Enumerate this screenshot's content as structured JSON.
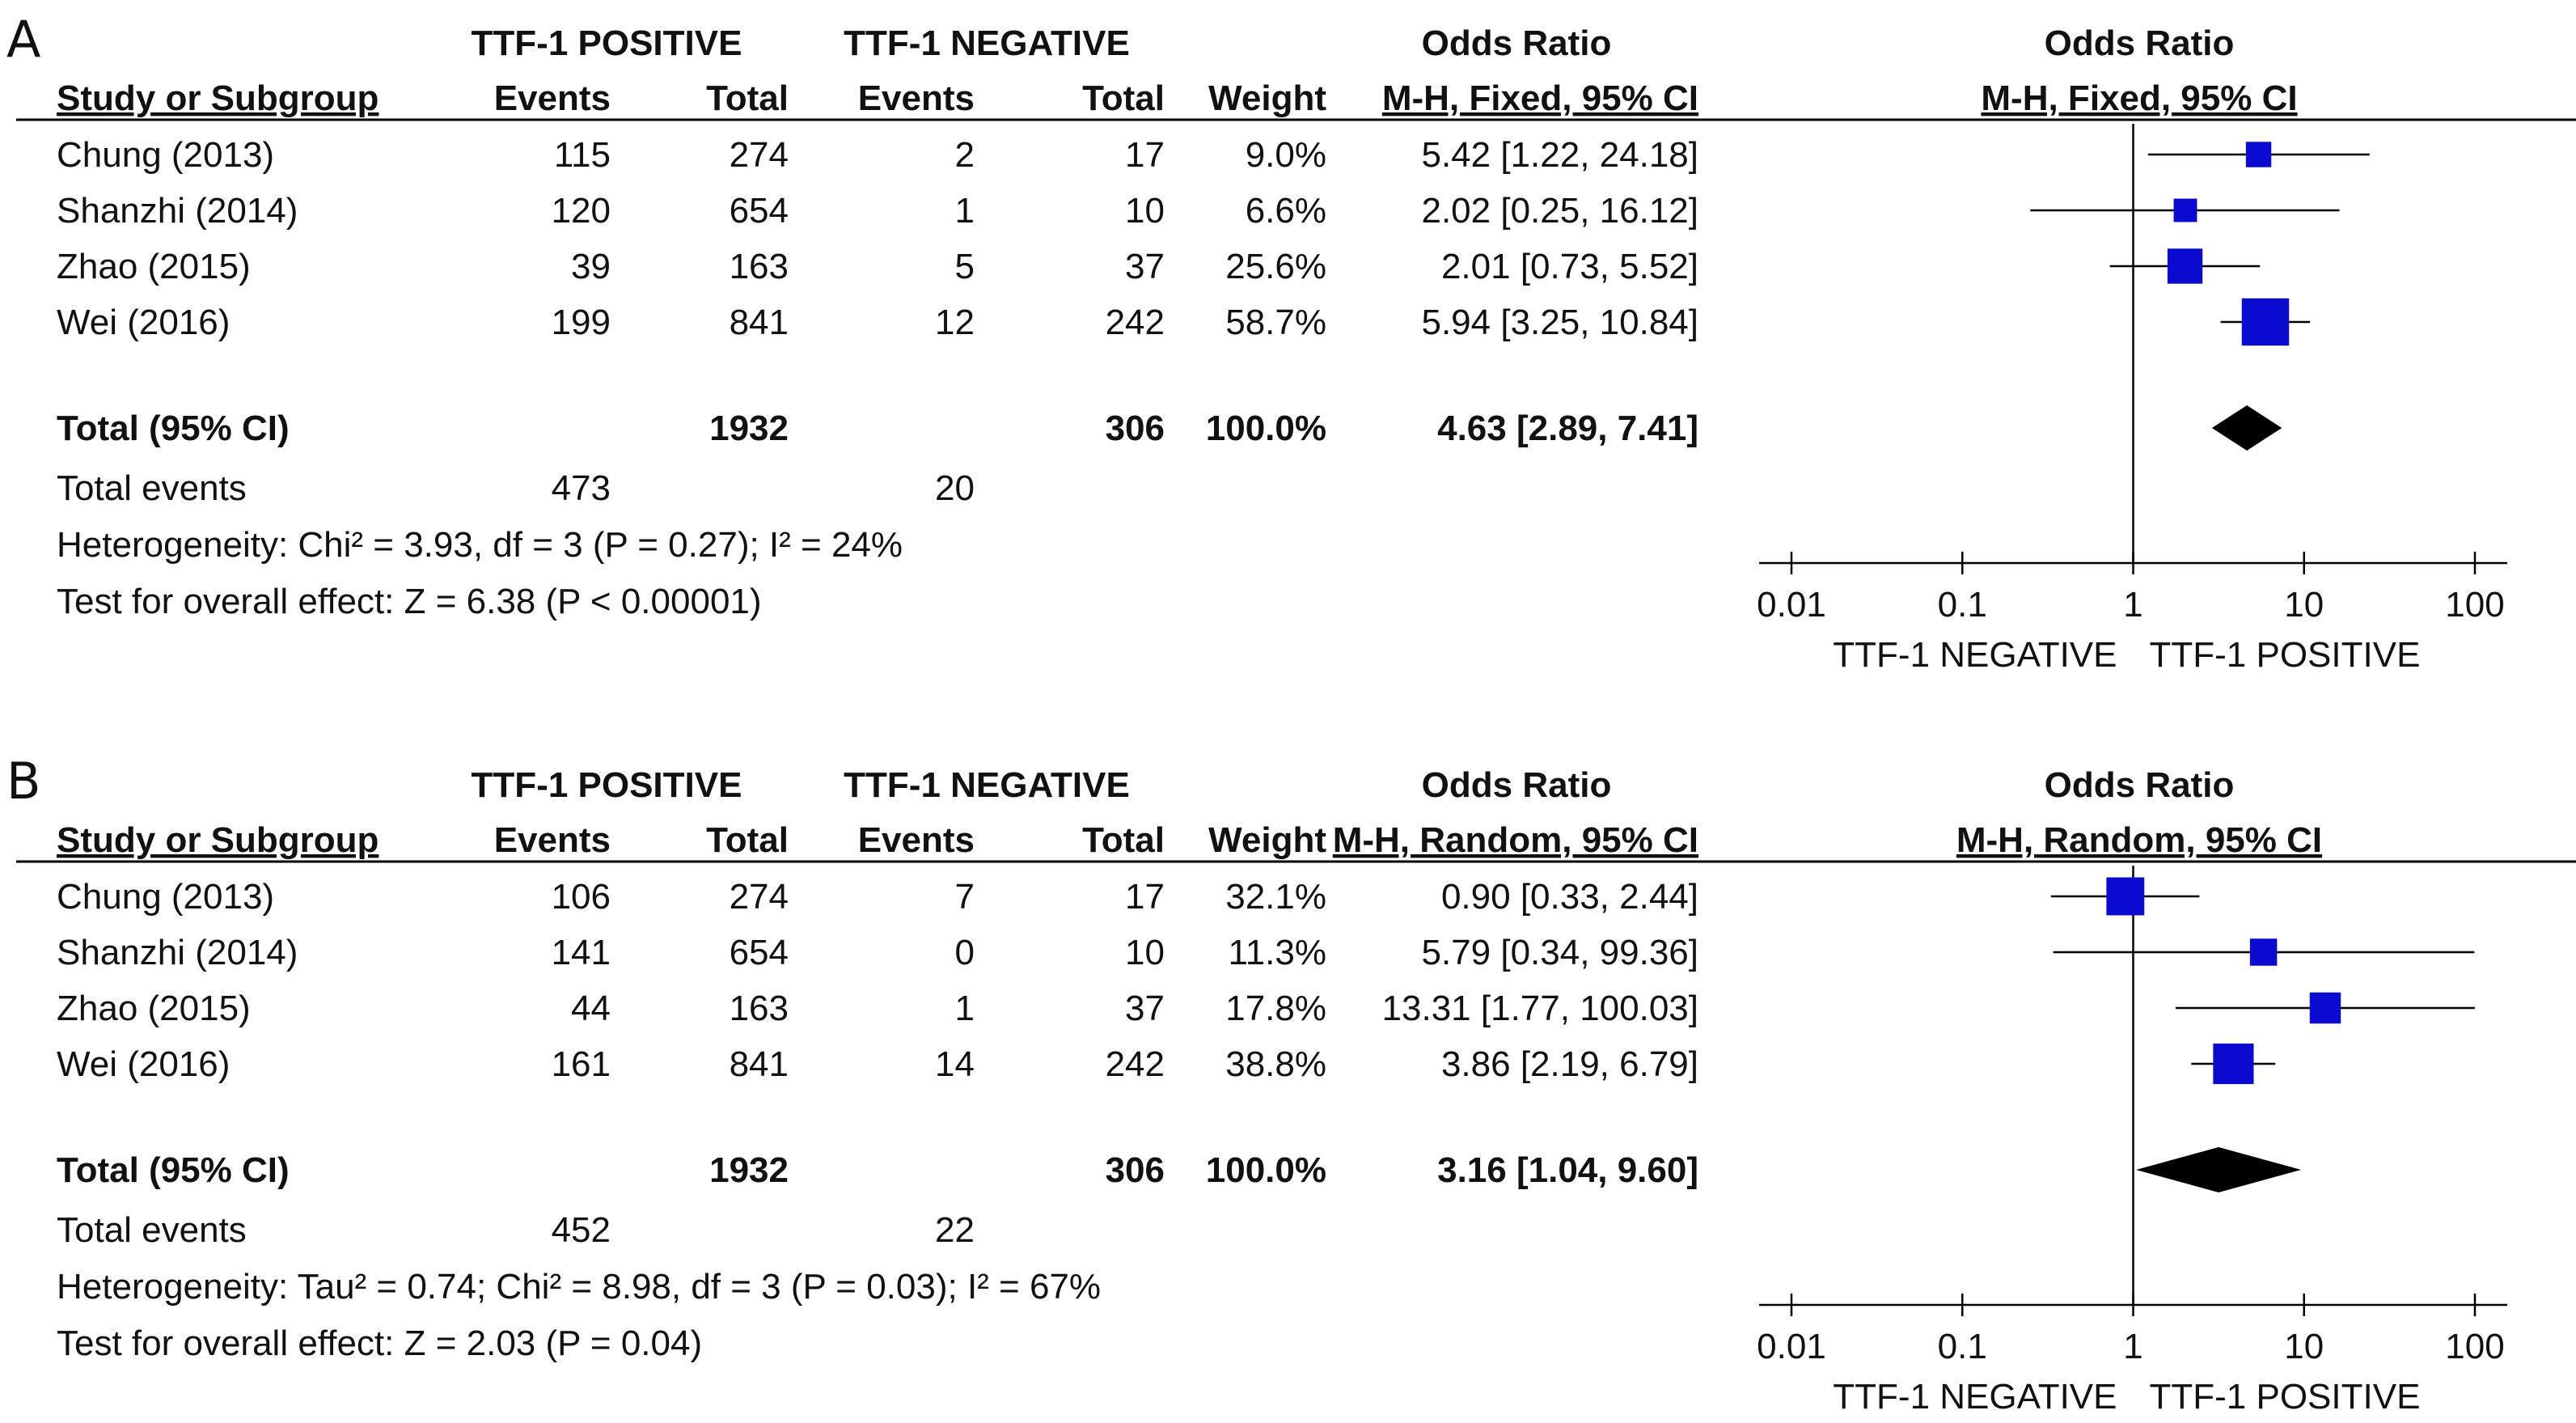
{
  "chart_data": [
    {
      "type": "forest",
      "panel_label": "A",
      "headers": {
        "group1": "TTF-1 POSITIVE",
        "group2": "TTF-1 NEGATIVE",
        "or_top": "Odds Ratio",
        "or_bottom": "M-H, Fixed, 95% CI",
        "study": "Study or Subgroup",
        "events": "Events",
        "total": "Total",
        "weight": "Weight"
      },
      "studies": [
        {
          "name": "Chung (2013)",
          "e1": "115",
          "t1": "274",
          "e2": "2",
          "t2": "17",
          "weight": "9.0%",
          "ci_text": "5.42 [1.22, 24.18]",
          "or": 5.42,
          "lo": 1.22,
          "hi": 24.18,
          "w": 9.0
        },
        {
          "name": "Shanzhi (2014)",
          "e1": "120",
          "t1": "654",
          "e2": "1",
          "t2": "10",
          "weight": "6.6%",
          "ci_text": "2.02 [0.25, 16.12]",
          "or": 2.02,
          "lo": 0.25,
          "hi": 16.12,
          "w": 6.6
        },
        {
          "name": "Zhao (2015)",
          "e1": "39",
          "t1": "163",
          "e2": "5",
          "t2": "37",
          "weight": "25.6%",
          "ci_text": "2.01 [0.73, 5.52]",
          "or": 2.01,
          "lo": 0.73,
          "hi": 5.52,
          "w": 25.6
        },
        {
          "name": "Wei (2016)",
          "e1": "199",
          "t1": "841",
          "e2": "12",
          "t2": "242",
          "weight": "58.7%",
          "ci_text": "5.94 [3.25, 10.84]",
          "or": 5.94,
          "lo": 3.25,
          "hi": 10.84,
          "w": 58.7
        }
      ],
      "total": {
        "name": "Total (95% CI)",
        "t1": "1932",
        "t2": "306",
        "weight": "100.0%",
        "ci_text": "4.63 [2.89, 7.41]",
        "or": 4.63,
        "lo": 2.89,
        "hi": 7.41
      },
      "total_events": {
        "label": "Total events",
        "e1": "473",
        "e2": "20"
      },
      "heterogeneity": "Heterogeneity: Chi² = 3.93, df = 3 (P = 0.27); I² = 24%",
      "overall": "Test for overall effect: Z = 6.38 (P < 0.00001)",
      "x_ticks": [
        0.01,
        0.1,
        1,
        10,
        100
      ],
      "x_tick_labels": [
        "0.01",
        "0.1",
        "1",
        "10",
        "100"
      ],
      "x_scale": "log",
      "xlim": [
        0.01,
        100
      ],
      "favours_left": "TTF-1 NEGATIVE",
      "favours_right": "TTF-1 POSITIVE",
      "colors": {
        "marker": "#0a0ad0",
        "diamond": "#000000",
        "line": "#000000"
      }
    },
    {
      "type": "forest",
      "panel_label": "B",
      "headers": {
        "group1": "TTF-1 POSITIVE",
        "group2": "TTF-1 NEGATIVE",
        "or_top": "Odds Ratio",
        "or_bottom": "M-H, Random, 95% CI",
        "study": "Study or Subgroup",
        "events": "Events",
        "total": "Total",
        "weight": "Weight"
      },
      "studies": [
        {
          "name": "Chung (2013)",
          "e1": "106",
          "t1": "274",
          "e2": "7",
          "t2": "17",
          "weight": "32.1%",
          "ci_text": "0.90 [0.33, 2.44]",
          "or": 0.9,
          "lo": 0.33,
          "hi": 2.44,
          "w": 32.1
        },
        {
          "name": "Shanzhi (2014)",
          "e1": "141",
          "t1": "654",
          "e2": "0",
          "t2": "10",
          "weight": "11.3%",
          "ci_text": "5.79 [0.34, 99.36]",
          "or": 5.79,
          "lo": 0.34,
          "hi": 99.36,
          "w": 11.3
        },
        {
          "name": "Zhao (2015)",
          "e1": "44",
          "t1": "163",
          "e2": "1",
          "t2": "37",
          "weight": "17.8%",
          "ci_text": "13.31 [1.77, 100.03]",
          "or": 13.31,
          "lo": 1.77,
          "hi": 100.03,
          "w": 17.8
        },
        {
          "name": "Wei (2016)",
          "e1": "161",
          "t1": "841",
          "e2": "14",
          "t2": "242",
          "weight": "38.8%",
          "ci_text": "3.86 [2.19, 6.79]",
          "or": 3.86,
          "lo": 2.19,
          "hi": 6.79,
          "w": 38.8
        }
      ],
      "total": {
        "name": "Total (95% CI)",
        "t1": "1932",
        "t2": "306",
        "weight": "100.0%",
        "ci_text": "3.16 [1.04, 9.60]",
        "or": 3.16,
        "lo": 1.04,
        "hi": 9.6
      },
      "total_events": {
        "label": "Total events",
        "e1": "452",
        "e2": "22"
      },
      "heterogeneity": "Heterogeneity: Tau² = 0.74; Chi² = 8.98, df = 3 (P = 0.03); I² = 67%",
      "overall": "Test for overall effect: Z = 2.03 (P = 0.04)",
      "x_ticks": [
        0.01,
        0.1,
        1,
        10,
        100
      ],
      "x_tick_labels": [
        "0.01",
        "0.1",
        "1",
        "10",
        "100"
      ],
      "x_scale": "log",
      "xlim": [
        0.01,
        100
      ],
      "favours_left": "TTF-1 NEGATIVE",
      "favours_right": "TTF-1 POSITIVE",
      "colors": {
        "marker": "#0a0ad0",
        "diamond": "#000000",
        "line": "#000000"
      }
    }
  ]
}
